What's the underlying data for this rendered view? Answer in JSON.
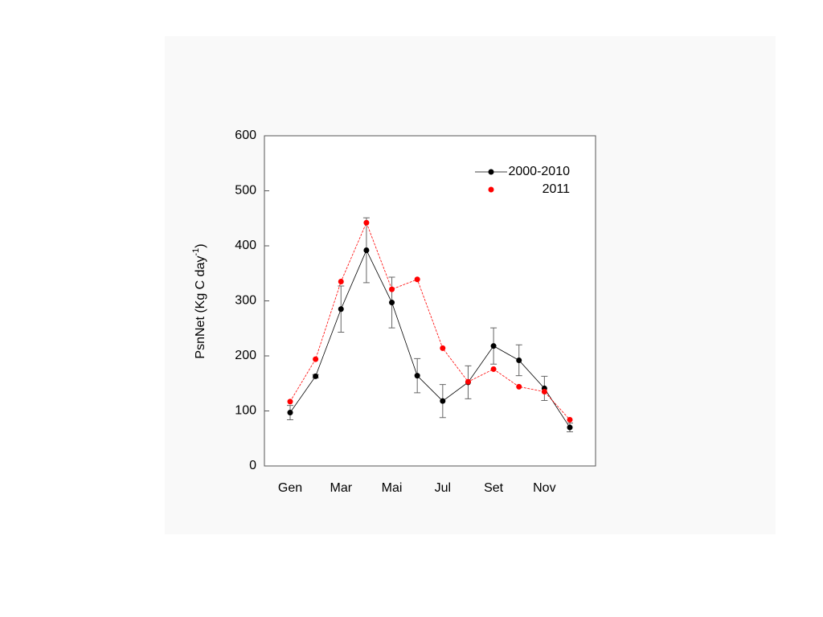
{
  "chart_data": {
    "type": "line",
    "y_label": {
      "text": "PsnNet (Kg C day",
      "superscript": "-1",
      "suffix": ")"
    },
    "categories": [
      "Gen",
      null,
      "Mar",
      null,
      "Mai",
      null,
      "Jul",
      null,
      "Set",
      null,
      "Nov",
      null
    ],
    "series": [
      {
        "name": "2000-2010",
        "color": "#000000",
        "values": [
          97,
          163,
          285,
          392,
          297,
          164,
          118,
          152,
          218,
          192,
          141,
          70
        ],
        "errors": [
          13,
          3,
          42,
          59,
          46,
          31,
          30,
          30,
          33,
          28,
          22,
          8
        ]
      },
      {
        "name": "2011",
        "color": "#ff0000",
        "values": [
          117,
          194,
          335,
          442,
          321,
          339,
          214,
          153,
          176,
          144,
          135,
          84
        ]
      }
    ],
    "ylim": [
      0,
      600
    ],
    "yticks": [
      0,
      100,
      200,
      300,
      400,
      500,
      600
    ],
    "legend": "upper right"
  }
}
